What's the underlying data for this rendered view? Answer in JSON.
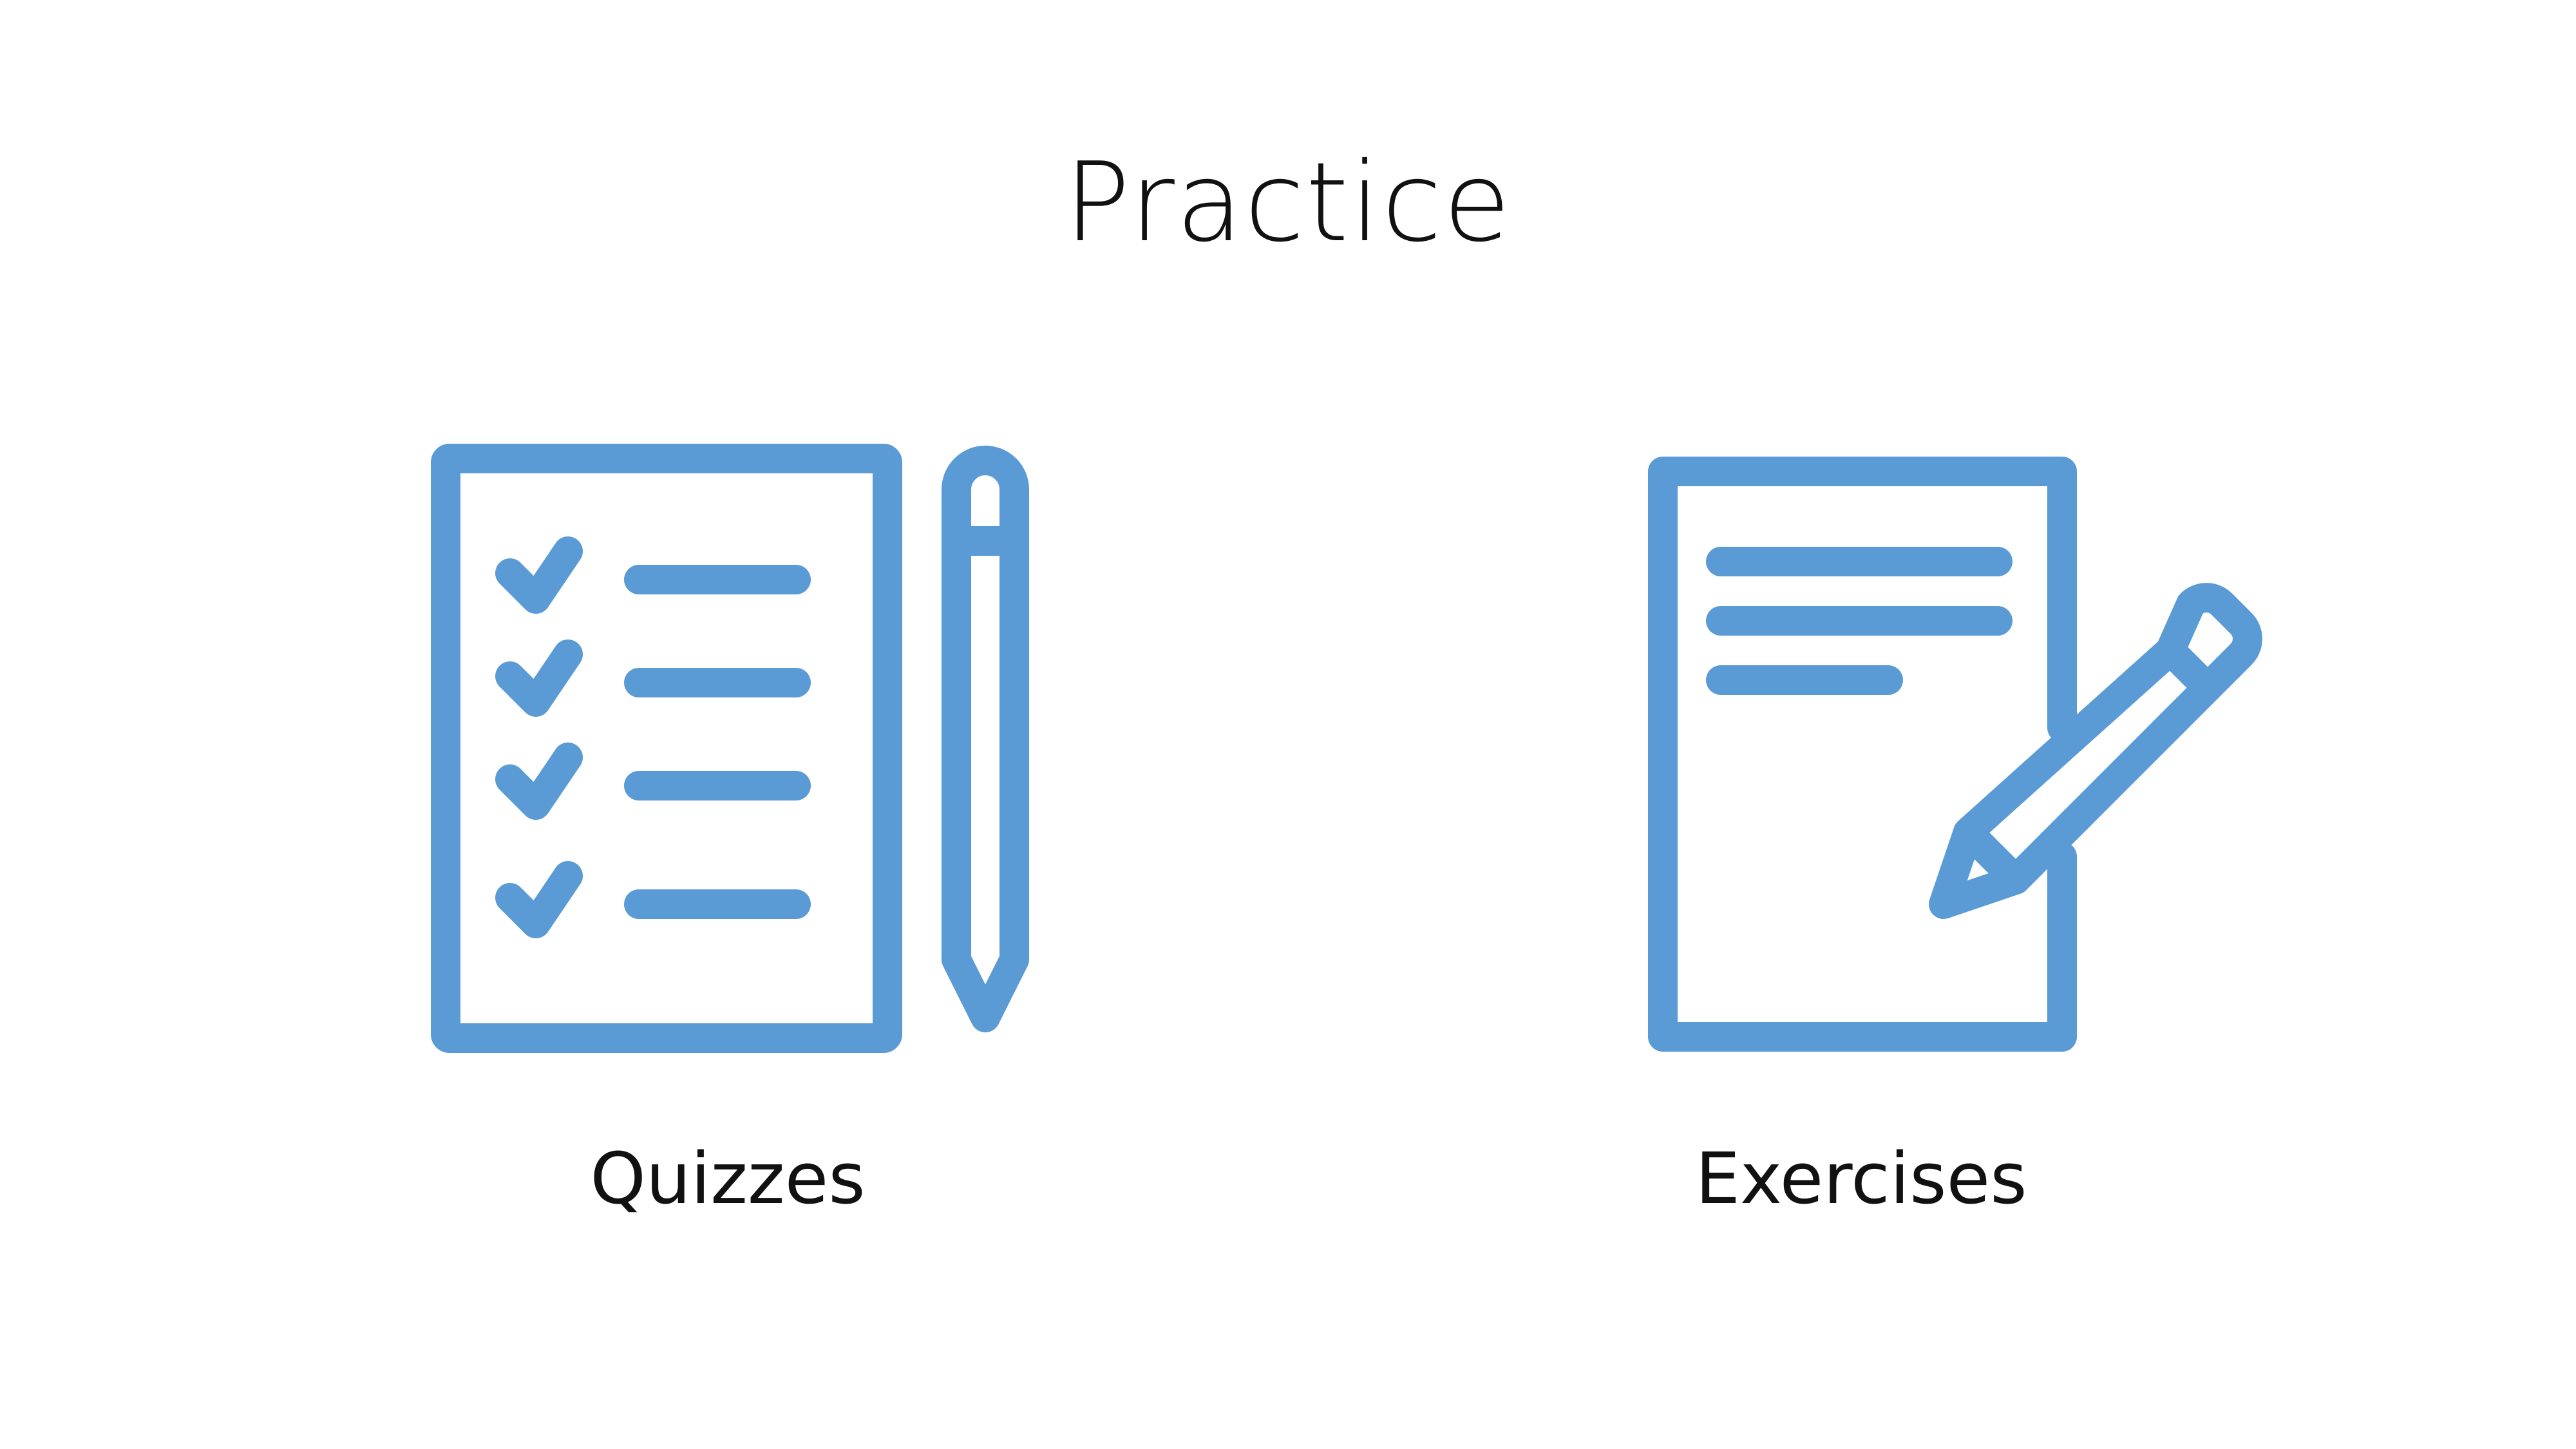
{
  "slide": {
    "title": "Practice",
    "accent_color": "#5b9bd5",
    "items": [
      {
        "label": "Quizzes",
        "icon": "quiz-checklist-pencil-icon"
      },
      {
        "label": "Exercises",
        "icon": "document-pencil-icon"
      }
    ]
  }
}
